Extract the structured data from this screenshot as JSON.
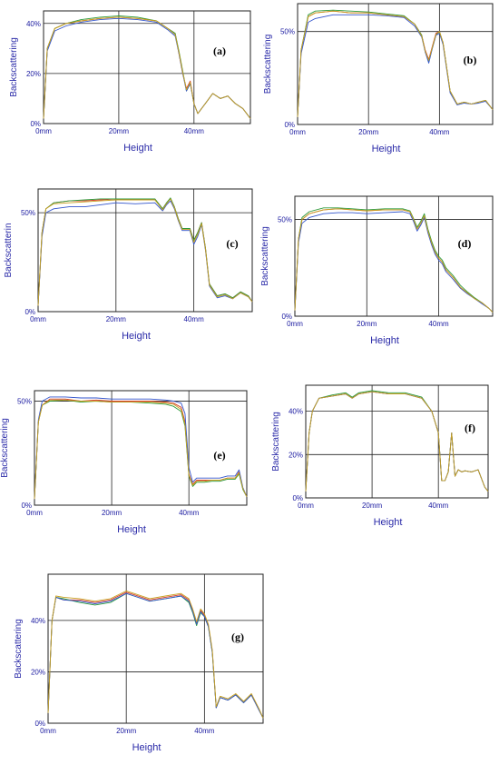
{
  "chart_data": [
    {
      "type": "line",
      "panel_label": "(a)",
      "xlabel": "Height",
      "ylabel": "Backscattering",
      "xticks": [
        "0mm",
        "20mm",
        "40mm"
      ],
      "yticks": [
        "0%",
        "20%",
        "40%"
      ],
      "xlim": [
        0,
        55
      ],
      "ylim": [
        0,
        45
      ],
      "grid": true,
      "colors": [
        "#d43a2a",
        "#2d9a3a",
        "#3355cc",
        "#c8a020"
      ],
      "series_x": [
        0,
        1,
        3,
        6,
        10,
        15,
        20,
        25,
        30,
        33,
        35,
        36,
        37,
        38,
        39,
        40,
        41,
        43,
        45,
        47,
        49,
        51,
        53,
        55
      ],
      "series": [
        {
          "values": [
            2,
            30,
            38,
            40,
            41,
            42,
            42.5,
            42,
            41,
            38,
            36,
            28,
            20,
            14,
            17,
            8,
            4,
            8,
            12,
            10,
            11,
            8,
            6,
            2
          ]
        },
        {
          "values": [
            2,
            30,
            38,
            40,
            41.5,
            42.5,
            43,
            42.5,
            41,
            38,
            36,
            29,
            21,
            13,
            16,
            8,
            4,
            8,
            12,
            10,
            11,
            8,
            6,
            2
          ]
        },
        {
          "values": [
            2,
            29,
            37,
            39,
            40.5,
            41.5,
            42,
            41.5,
            40.5,
            37.5,
            35,
            28,
            20,
            13,
            16,
            8,
            4,
            8,
            12,
            10,
            11,
            8,
            6,
            2
          ]
        },
        {
          "values": [
            2,
            30,
            38,
            40,
            41,
            42,
            42.5,
            42,
            41,
            38,
            35.5,
            28.5,
            20.5,
            13.5,
            16.5,
            8,
            4,
            8,
            12,
            10,
            11,
            8,
            6,
            2
          ]
        }
      ]
    },
    {
      "type": "line",
      "panel_label": "(b)",
      "xlabel": "Height",
      "ylabel": "Backscattering",
      "xticks": [
        "0mm",
        "20mm",
        "40mm"
      ],
      "yticks": [
        "0%",
        "50%"
      ],
      "xlim": [
        0,
        55
      ],
      "ylim": [
        0,
        65
      ],
      "grid": true,
      "colors": [
        "#d43a2a",
        "#2d9a3a",
        "#3355cc",
        "#c8a020"
      ],
      "series_x": [
        0,
        1,
        3,
        5,
        10,
        15,
        20,
        25,
        30,
        33,
        35,
        36,
        37,
        38,
        39,
        40,
        41,
        43,
        45,
        47,
        49,
        51,
        53,
        55
      ],
      "series": [
        {
          "values": [
            4,
            40,
            58,
            60,
            61,
            60,
            60,
            59,
            58,
            54,
            48,
            40,
            35,
            42,
            49,
            50,
            44,
            18,
            11,
            12,
            11,
            12,
            13,
            8
          ]
        },
        {
          "values": [
            4,
            40,
            59,
            61,
            61.5,
            61,
            60.5,
            59.5,
            58.5,
            54,
            48,
            39,
            34,
            41,
            48,
            50,
            44,
            18,
            11,
            12,
            11,
            12,
            13,
            8
          ]
        },
        {
          "values": [
            4,
            38,
            55,
            57,
            59,
            59,
            59,
            58.5,
            57.5,
            53,
            47,
            39,
            33,
            41,
            48,
            49,
            43,
            17,
            10.5,
            11.5,
            11,
            11.5,
            12.5,
            8
          ]
        },
        {
          "values": [
            4,
            40,
            58,
            60,
            61,
            60,
            60,
            59,
            58,
            54,
            47.5,
            39.5,
            34.5,
            41.5,
            48.5,
            50,
            44,
            18,
            11,
            12,
            11,
            12,
            13,
            8
          ]
        }
      ]
    },
    {
      "type": "line",
      "panel_label": "(c)",
      "xlabel": "Height",
      "ylabel": "Backscatterin",
      "xticks": [
        "0mm",
        "20mm",
        "40mm"
      ],
      "yticks": [
        "0%",
        "50%"
      ],
      "xlim": [
        0,
        55
      ],
      "ylim": [
        0,
        62
      ],
      "grid": true,
      "colors": [
        "#d43a2a",
        "#2d9a3a",
        "#3355cc",
        "#c8a020"
      ],
      "series_x": [
        0,
        1,
        2,
        4,
        8,
        12,
        16,
        20,
        25,
        30,
        32,
        33,
        34,
        35,
        36,
        37,
        38,
        39,
        40,
        41,
        42,
        43,
        44,
        46,
        48,
        50,
        52,
        54,
        55
      ],
      "series": [
        {
          "values": [
            3,
            40,
            52,
            55,
            56,
            56,
            56.5,
            57,
            57,
            57,
            52,
            55,
            57,
            53,
            47,
            42,
            42,
            42,
            36,
            40,
            45,
            32,
            14,
            8,
            9,
            7,
            10,
            8,
            5
          ]
        },
        {
          "values": [
            3,
            40,
            52,
            55,
            56,
            56.5,
            57,
            57,
            57,
            57,
            52,
            55,
            57.5,
            53,
            47,
            42,
            42,
            42,
            36,
            40,
            45,
            32,
            14,
            8,
            9,
            7,
            10,
            8,
            5
          ]
        },
        {
          "values": [
            3,
            38,
            50,
            52,
            53,
            53,
            54,
            55,
            54.5,
            55,
            51,
            54,
            56,
            52,
            46,
            41,
            41,
            41,
            34,
            38,
            44,
            31,
            13,
            7,
            8,
            6.5,
            9.5,
            7.5,
            5
          ]
        },
        {
          "values": [
            3,
            40,
            52,
            54.5,
            55,
            55.5,
            56,
            56.5,
            56.5,
            56.5,
            51.5,
            54.5,
            57,
            52.5,
            46.5,
            41.5,
            41.5,
            41.5,
            35,
            39,
            44.5,
            31.5,
            13.5,
            7.5,
            8.5,
            6.5,
            9.5,
            7.5,
            5
          ]
        }
      ]
    },
    {
      "type": "line",
      "panel_label": "(d)",
      "xlabel": "Height",
      "ylabel": "Backscattering",
      "xticks": [
        "0mm",
        "20mm",
        "40mm"
      ],
      "yticks": [
        "0%",
        "50%"
      ],
      "xlim": [
        0,
        55
      ],
      "ylim": [
        0,
        62
      ],
      "grid": true,
      "colors": [
        "#d43a2a",
        "#2d9a3a",
        "#3355cc",
        "#c8a020"
      ],
      "series_x": [
        0,
        1,
        2,
        4,
        8,
        12,
        16,
        20,
        25,
        30,
        32,
        33,
        34,
        35,
        36,
        37,
        38,
        39,
        40,
        41,
        42,
        44,
        46,
        48,
        50,
        52,
        54,
        55
      ],
      "series": [
        {
          "values": [
            3,
            40,
            50,
            53,
            55,
            55.5,
            55,
            54.5,
            55,
            55,
            54,
            50,
            45,
            48,
            52,
            44,
            38,
            33,
            30,
            28,
            24,
            20,
            15,
            12,
            9,
            7,
            4,
            2
          ]
        },
        {
          "values": [
            3,
            40,
            51,
            54,
            56,
            56,
            55.5,
            55,
            55.5,
            55.5,
            54.5,
            50.5,
            46,
            49,
            53,
            45,
            39,
            34,
            31,
            29,
            25,
            21,
            16,
            12.5,
            9.5,
            7,
            4,
            2
          ]
        },
        {
          "values": [
            3,
            38,
            48,
            51,
            53,
            53.5,
            53.5,
            53,
            53.5,
            54,
            53,
            49,
            44,
            47,
            51,
            43,
            37,
            32,
            29,
            27,
            23,
            19,
            14.5,
            11.5,
            9,
            6.5,
            4,
            2
          ]
        },
        {
          "values": [
            3,
            40,
            50,
            53,
            55,
            55.5,
            55,
            54.5,
            55,
            55,
            54,
            50,
            45,
            48,
            52,
            44,
            38,
            33,
            30,
            28,
            24,
            20,
            15,
            12,
            9,
            7,
            4,
            2
          ]
        }
      ]
    },
    {
      "type": "line",
      "panel_label": "(e)",
      "xlabel": "Height",
      "ylabel": "Backscattering",
      "xticks": [
        "0mm",
        "20mm",
        "40mm"
      ],
      "yticks": [
        "0%",
        "50%"
      ],
      "xlim": [
        0,
        55
      ],
      "ylim": [
        0,
        55
      ],
      "grid": true,
      "colors": [
        "#d43a2a",
        "#2d9a3a",
        "#3355cc",
        "#c8a020"
      ],
      "series_x": [
        0,
        1,
        2,
        4,
        8,
        12,
        16,
        20,
        25,
        30,
        34,
        36,
        38,
        39,
        40,
        41,
        42,
        44,
        46,
        48,
        50,
        52,
        53,
        54,
        55
      ],
      "series": [
        {
          "values": [
            3,
            40,
            48,
            51,
            51,
            50,
            50.5,
            50,
            50,
            50,
            49.5,
            49,
            47,
            40,
            15,
            10,
            12,
            12,
            12,
            12,
            13,
            13,
            16,
            8,
            4
          ]
        },
        {
          "values": [
            3,
            40,
            48,
            50,
            50.5,
            49.5,
            50,
            49.5,
            49.5,
            49,
            48.5,
            47.5,
            45,
            38,
            14,
            9,
            11,
            11,
            11.5,
            11.5,
            12.5,
            12.5,
            15,
            7.5,
            4
          ]
        },
        {
          "values": [
            3,
            41,
            50,
            52,
            52,
            51.5,
            51.5,
            51,
            51,
            51,
            50.5,
            50,
            49,
            44,
            18,
            11,
            13,
            13,
            13,
            13,
            14,
            14,
            17,
            8.5,
            4
          ]
        },
        {
          "values": [
            3,
            40,
            48,
            50.5,
            50.5,
            50,
            50,
            49.5,
            49.5,
            49.5,
            49,
            48.5,
            46,
            39,
            14.5,
            9.5,
            11.5,
            11.5,
            12,
            12,
            13,
            13,
            15.5,
            8,
            4
          ]
        }
      ]
    },
    {
      "type": "line",
      "panel_label": "(f)",
      "xlabel": "Height",
      "ylabel": "Backscattering",
      "xticks": [
        "0mm",
        "20mm",
        "40mm"
      ],
      "yticks": [
        "0%",
        "20%",
        "40%"
      ],
      "xlim": [
        0,
        55
      ],
      "ylim": [
        0,
        52
      ],
      "grid": true,
      "colors": [
        "#d43a2a",
        "#2d9a3a",
        "#3355cc",
        "#c8a020"
      ],
      "series_x": [
        0,
        1,
        2,
        4,
        8,
        12,
        14,
        16,
        20,
        25,
        30,
        35,
        38,
        40,
        41,
        42,
        43,
        44,
        45,
        46,
        47,
        48,
        50,
        52,
        54,
        55
      ],
      "series": [
        {
          "values": [
            3,
            30,
            40,
            46,
            47,
            48,
            46,
            48,
            49,
            48,
            48,
            46,
            40,
            30,
            8,
            8,
            12,
            30,
            10,
            13,
            12,
            12.5,
            12,
            13,
            5,
            3
          ]
        },
        {
          "values": [
            3,
            30,
            40,
            46,
            47.5,
            48.5,
            46.5,
            48.5,
            49.5,
            48.5,
            48.5,
            46.5,
            40,
            30,
            8,
            8,
            12,
            30,
            10,
            13,
            12,
            12.5,
            12,
            13,
            5,
            3
          ]
        },
        {
          "values": [
            3,
            30,
            40,
            46,
            47,
            48,
            46,
            48,
            49,
            48,
            48,
            46,
            40,
            30,
            8,
            8,
            12,
            30,
            10,
            13,
            12,
            12.5,
            12,
            13,
            5,
            3
          ]
        },
        {
          "values": [
            3,
            30,
            40,
            46,
            47,
            48,
            46,
            48,
            49,
            48,
            48,
            46,
            40,
            30,
            8,
            8,
            12,
            30,
            10,
            13,
            12,
            12.5,
            12,
            13,
            5,
            3
          ]
        }
      ]
    },
    {
      "type": "line",
      "panel_label": "(g)",
      "xlabel": "Height",
      "ylabel": "Backscattering",
      "xticks": [
        "0mm",
        "20mm",
        "40mm"
      ],
      "yticks": [
        "0%",
        "20%",
        "40%"
      ],
      "xlim": [
        0,
        55
      ],
      "ylim": [
        0,
        58
      ],
      "grid": true,
      "colors": [
        "#d43a2a",
        "#2d9a3a",
        "#3355cc",
        "#c8a020"
      ],
      "series_x": [
        0,
        1,
        2,
        4,
        8,
        12,
        16,
        20,
        22,
        26,
        30,
        34,
        36,
        37,
        38,
        39,
        40,
        41,
        42,
        43,
        44,
        46,
        48,
        50,
        52,
        54,
        55
      ],
      "series": [
        {
          "values": [
            4,
            40,
            49,
            48,
            48,
            47,
            48,
            51,
            50,
            48,
            49,
            50,
            48,
            44,
            39,
            44,
            42,
            38,
            28,
            6,
            10,
            9,
            11,
            8,
            11,
            5,
            2
          ]
        },
        {
          "values": [
            4,
            40,
            49,
            48.5,
            47,
            46,
            47,
            50.5,
            49.5,
            47.5,
            48.5,
            49.5,
            47,
            43,
            38,
            43,
            41.5,
            37.5,
            27.5,
            6,
            10,
            9,
            11,
            8,
            11,
            5,
            2
          ]
        },
        {
          "values": [
            4,
            40,
            49,
            48,
            47.5,
            46.5,
            47.5,
            50.5,
            49.5,
            47.5,
            48.5,
            49.5,
            47.5,
            43.5,
            38.5,
            43.5,
            41.5,
            37.5,
            27.5,
            6,
            10,
            9,
            11,
            8,
            11,
            5,
            2
          ]
        },
        {
          "values": [
            4,
            40,
            49.5,
            49,
            48.5,
            47.5,
            48.5,
            51.5,
            50.5,
            48.5,
            49.5,
            50.5,
            48.5,
            44.5,
            39.5,
            44.5,
            42.5,
            38.5,
            28.5,
            6.5,
            10.5,
            9.5,
            11.5,
            8.5,
            11.5,
            5.5,
            2
          ]
        }
      ]
    }
  ]
}
